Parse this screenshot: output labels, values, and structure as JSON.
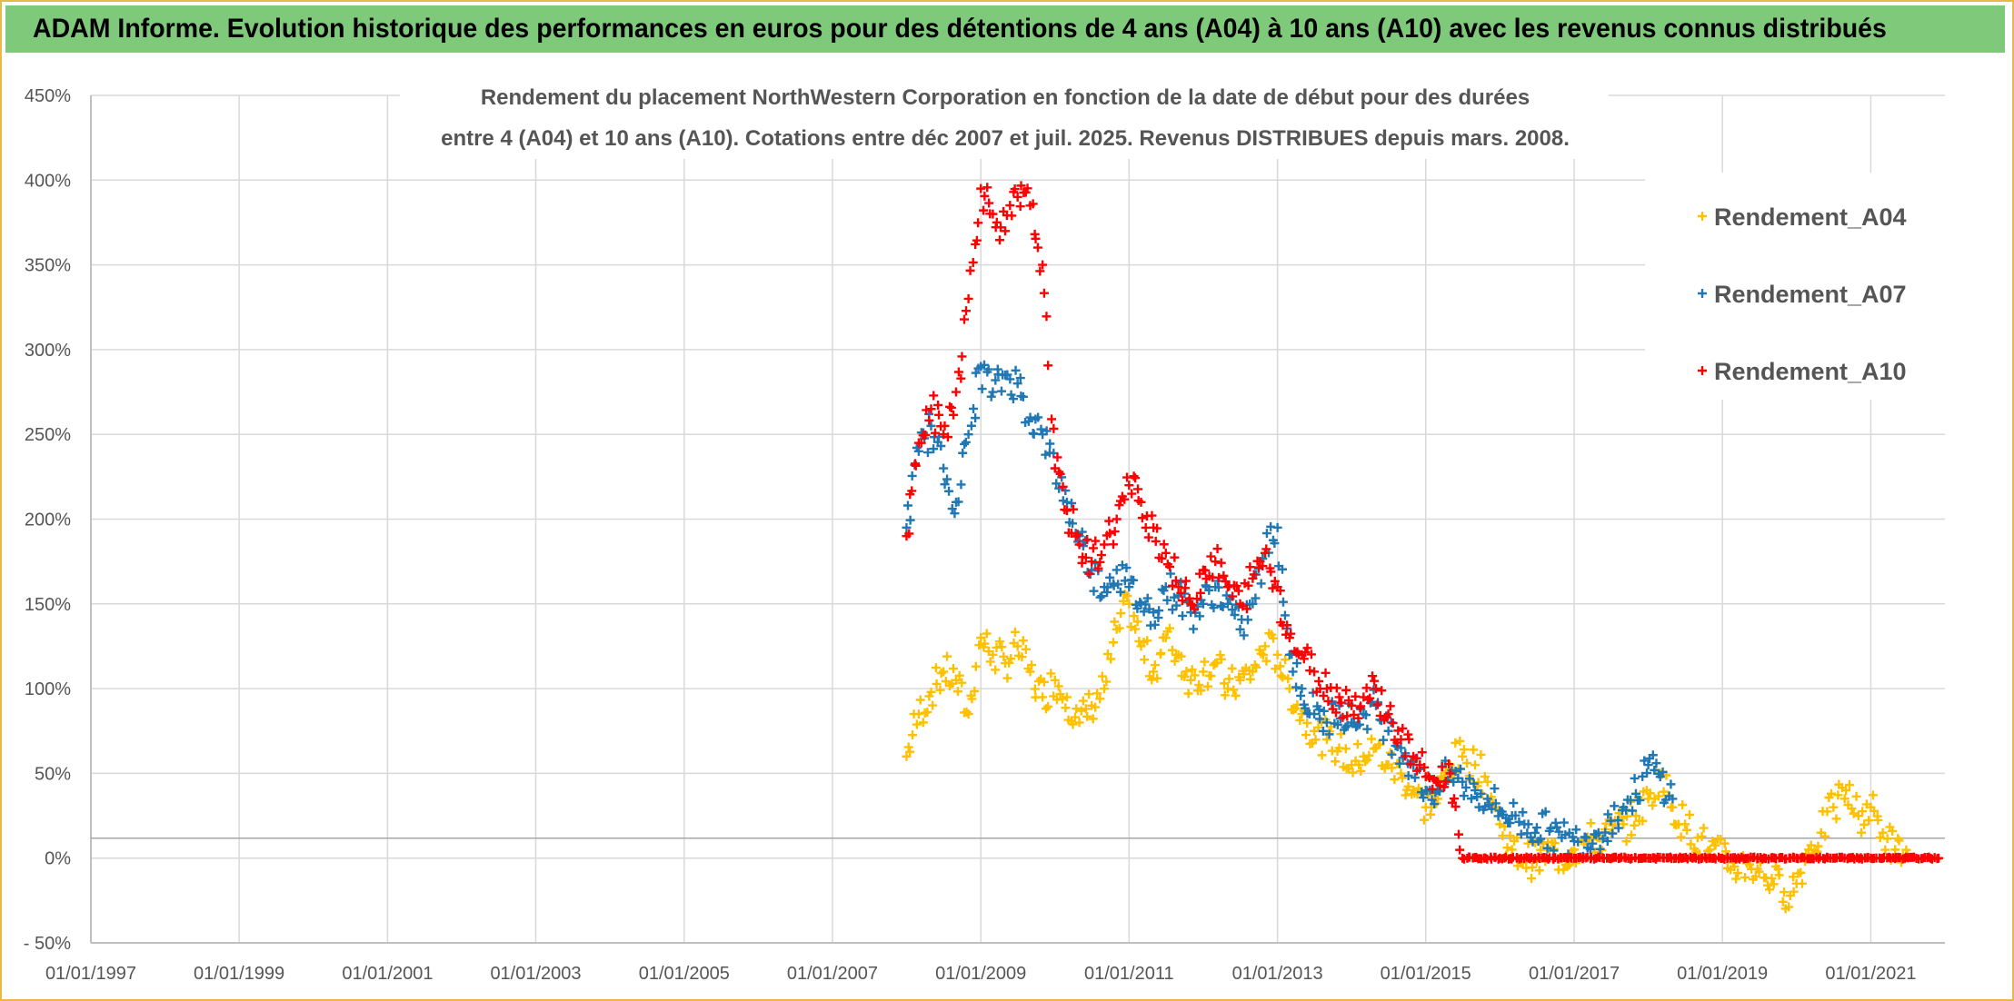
{
  "header": {
    "title": "ADAM Informe. Evolution historique des performances en euros pour des détentions de 4 ans (A04) à 10 ans (A10) avec les revenus connus distribués"
  },
  "colors": {
    "header_bg": "#7ec97a",
    "a04": "#ffc000",
    "a07": "#1f77b4",
    "a10": "#ff0000",
    "grid": "#d9d9d9"
  },
  "chart_data": {
    "type": "scatter",
    "title_lines": [
      "Rendement du placement NorthWestern Corporation en fonction de la date de début pour des durées",
      "entre 4 (A04) et 10 ans (A10). Cotations entre déc 2007 et juil. 2025. Revenus DISTRIBUES depuis mars. 2008."
    ],
    "xlabel": "",
    "ylabel": "",
    "x_ticks": [
      "01/01/1997",
      "01/01/1999",
      "01/01/2001",
      "01/01/2003",
      "01/01/2005",
      "01/01/2007",
      "01/01/2009",
      "01/01/2011",
      "01/01/2013",
      "01/01/2015",
      "01/01/2017",
      "01/01/2019",
      "01/01/2021"
    ],
    "y_ticks": [
      "450%",
      "400%",
      "350%",
      "300%",
      "250%",
      "200%",
      "150%",
      "100%",
      "50%",
      "0%",
      "- 50%"
    ],
    "xlim": [
      "1997-01-01",
      "2022-01-01"
    ],
    "ylim": [
      -50,
      450
    ],
    "grid": true,
    "legend_position": "top-right",
    "series": [
      {
        "name": "Rendement_A04",
        "color": "#ffc000",
        "points": [
          [
            "2008-01-01",
            60
          ],
          [
            "2008-03-01",
            85
          ],
          [
            "2008-05-01",
            98
          ],
          [
            "2008-07-01",
            110
          ],
          [
            "2008-09-01",
            105
          ],
          [
            "2008-11-01",
            85
          ],
          [
            "2009-01-01",
            130
          ],
          [
            "2009-03-01",
            120
          ],
          [
            "2009-05-01",
            115
          ],
          [
            "2009-07-01",
            125
          ],
          [
            "2009-09-01",
            110
          ],
          [
            "2009-11-01",
            95
          ],
          [
            "2010-01-01",
            105
          ],
          [
            "2010-03-01",
            95
          ],
          [
            "2010-05-01",
            80
          ],
          [
            "2010-07-01",
            90
          ],
          [
            "2010-09-01",
            100
          ],
          [
            "2010-11-01",
            135
          ],
          [
            "2011-01-01",
            150
          ],
          [
            "2011-03-01",
            125
          ],
          [
            "2011-05-01",
            110
          ],
          [
            "2011-07-01",
            130
          ],
          [
            "2011-09-01",
            120
          ],
          [
            "2011-11-01",
            105
          ],
          [
            "2012-01-01",
            110
          ],
          [
            "2012-03-01",
            115
          ],
          [
            "2012-05-01",
            100
          ],
          [
            "2012-07-01",
            105
          ],
          [
            "2012-09-01",
            110
          ],
          [
            "2012-11-01",
            125
          ],
          [
            "2013-01-01",
            120
          ],
          [
            "2013-03-01",
            100
          ],
          [
            "2013-05-01",
            85
          ],
          [
            "2013-07-01",
            75
          ],
          [
            "2013-09-01",
            70
          ],
          [
            "2013-11-01",
            65
          ],
          [
            "2014-01-01",
            55
          ],
          [
            "2014-03-01",
            60
          ],
          [
            "2014-05-01",
            65
          ],
          [
            "2014-07-01",
            55
          ],
          [
            "2014-09-01",
            50
          ],
          [
            "2014-11-01",
            40
          ],
          [
            "2015-01-01",
            30
          ],
          [
            "2015-03-01",
            35
          ],
          [
            "2015-05-01",
            55
          ],
          [
            "2015-07-01",
            60
          ],
          [
            "2015-09-01",
            55
          ],
          [
            "2015-11-01",
            45
          ],
          [
            "2016-01-01",
            20
          ],
          [
            "2016-03-01",
            5
          ],
          [
            "2016-05-01",
            0
          ],
          [
            "2016-07-01",
            -2
          ],
          [
            "2016-09-01",
            5
          ],
          [
            "2016-11-01",
            0
          ],
          [
            "2017-01-01",
            5
          ],
          [
            "2017-03-01",
            10
          ],
          [
            "2017-05-01",
            12
          ],
          [
            "2017-07-01",
            15
          ],
          [
            "2017-09-01",
            20
          ],
          [
            "2017-11-01",
            25
          ],
          [
            "2018-01-01",
            35
          ],
          [
            "2018-03-01",
            50
          ],
          [
            "2018-05-01",
            30
          ],
          [
            "2018-07-01",
            20
          ],
          [
            "2018-09-01",
            12
          ],
          [
            "2018-11-01",
            5
          ],
          [
            "2019-01-01",
            0
          ],
          [
            "2019-03-01",
            -5
          ],
          [
            "2019-05-01",
            -3
          ],
          [
            "2019-07-01",
            -8
          ],
          [
            "2019-09-01",
            -12
          ],
          [
            "2019-11-01",
            -20
          ],
          [
            "2020-01-01",
            -15
          ],
          [
            "2020-03-01",
            5
          ],
          [
            "2020-05-01",
            15
          ],
          [
            "2020-07-01",
            30
          ],
          [
            "2020-09-01",
            40
          ],
          [
            "2020-11-01",
            25
          ],
          [
            "2021-01-01",
            30
          ],
          [
            "2021-03-01",
            15
          ],
          [
            "2021-05-01",
            5
          ],
          [
            "2021-07-01",
            2
          ]
        ]
      },
      {
        "name": "Rendement_A07",
        "color": "#1f77b4",
        "points": [
          [
            "2008-01-01",
            195
          ],
          [
            "2008-03-01",
            240
          ],
          [
            "2008-05-01",
            255
          ],
          [
            "2008-07-01",
            230
          ],
          [
            "2008-09-01",
            210
          ],
          [
            "2008-11-01",
            250
          ],
          [
            "2009-01-01",
            290
          ],
          [
            "2009-03-01",
            275
          ],
          [
            "2009-05-01",
            285
          ],
          [
            "2009-07-01",
            280
          ],
          [
            "2009-09-01",
            260
          ],
          [
            "2009-11-01",
            250
          ],
          [
            "2010-01-01",
            230
          ],
          [
            "2010-03-01",
            210
          ],
          [
            "2010-05-01",
            190
          ],
          [
            "2010-07-01",
            170
          ],
          [
            "2010-09-01",
            160
          ],
          [
            "2010-11-01",
            170
          ],
          [
            "2011-01-01",
            160
          ],
          [
            "2011-03-01",
            150
          ],
          [
            "2011-05-01",
            145
          ],
          [
            "2011-07-01",
            160
          ],
          [
            "2011-09-01",
            155
          ],
          [
            "2011-11-01",
            145
          ],
          [
            "2012-01-01",
            150
          ],
          [
            "2012-03-01",
            160
          ],
          [
            "2012-05-01",
            150
          ],
          [
            "2012-07-01",
            135
          ],
          [
            "2012-09-01",
            150
          ],
          [
            "2012-11-01",
            180
          ],
          [
            "2013-01-01",
            195
          ],
          [
            "2013-03-01",
            120
          ],
          [
            "2013-05-01",
            100
          ],
          [
            "2013-07-01",
            85
          ],
          [
            "2013-09-01",
            80
          ],
          [
            "2013-11-01",
            90
          ],
          [
            "2014-01-01",
            80
          ],
          [
            "2014-03-01",
            85
          ],
          [
            "2014-05-01",
            90
          ],
          [
            "2014-07-01",
            75
          ],
          [
            "2014-09-01",
            65
          ],
          [
            "2014-11-01",
            55
          ],
          [
            "2015-01-01",
            40
          ],
          [
            "2015-03-01",
            40
          ],
          [
            "2015-05-01",
            50
          ],
          [
            "2015-07-01",
            45
          ],
          [
            "2015-09-01",
            40
          ],
          [
            "2015-11-01",
            35
          ],
          [
            "2016-01-01",
            28
          ],
          [
            "2016-03-01",
            25
          ],
          [
            "2016-05-01",
            20
          ],
          [
            "2016-07-01",
            18
          ],
          [
            "2016-09-01",
            16
          ],
          [
            "2016-11-01",
            12
          ],
          [
            "2017-01-01",
            10
          ],
          [
            "2017-03-01",
            12
          ],
          [
            "2017-05-01",
            15
          ],
          [
            "2017-07-01",
            22
          ],
          [
            "2017-09-01",
            30
          ],
          [
            "2017-11-01",
            38
          ],
          [
            "2018-01-01",
            55
          ],
          [
            "2018-03-01",
            48
          ],
          [
            "2018-05-01",
            35
          ]
        ]
      },
      {
        "name": "Rendement_A10",
        "color": "#ff0000",
        "points": [
          [
            "2008-01-01",
            190
          ],
          [
            "2008-03-01",
            245
          ],
          [
            "2008-05-01",
            265
          ],
          [
            "2008-07-01",
            250
          ],
          [
            "2008-09-01",
            275
          ],
          [
            "2008-11-01",
            330
          ],
          [
            "2009-01-01",
            395
          ],
          [
            "2009-03-01",
            380
          ],
          [
            "2009-05-01",
            370
          ],
          [
            "2009-07-01",
            390
          ],
          [
            "2009-09-01",
            385
          ],
          [
            "2009-11-01",
            350
          ],
          [
            "2010-01-01",
            230
          ],
          [
            "2010-03-01",
            205
          ],
          [
            "2010-05-01",
            185
          ],
          [
            "2010-07-01",
            175
          ],
          [
            "2010-09-01",
            185
          ],
          [
            "2010-11-01",
            200
          ],
          [
            "2011-01-01",
            220
          ],
          [
            "2011-03-01",
            210
          ],
          [
            "2011-05-01",
            195
          ],
          [
            "2011-07-01",
            180
          ],
          [
            "2011-09-01",
            160
          ],
          [
            "2011-11-01",
            150
          ],
          [
            "2012-01-01",
            170
          ],
          [
            "2012-03-01",
            175
          ],
          [
            "2012-05-01",
            160
          ],
          [
            "2012-07-01",
            150
          ],
          [
            "2012-09-01",
            165
          ],
          [
            "2012-11-01",
            180
          ],
          [
            "2013-01-01",
            160
          ],
          [
            "2013-03-01",
            130
          ],
          [
            "2013-05-01",
            120
          ],
          [
            "2013-07-01",
            110
          ],
          [
            "2013-09-01",
            100
          ],
          [
            "2013-11-01",
            95
          ],
          [
            "2014-01-01",
            90
          ],
          [
            "2014-03-01",
            95
          ],
          [
            "2014-05-01",
            100
          ],
          [
            "2014-07-01",
            85
          ],
          [
            "2014-09-01",
            70
          ],
          [
            "2014-11-01",
            60
          ],
          [
            "2015-01-01",
            48
          ],
          [
            "2015-03-01",
            45
          ],
          [
            "2015-05-01",
            50
          ],
          [
            "2015-07-01",
            0
          ],
          [
            "2016-01-01",
            0
          ],
          [
            "2017-01-01",
            0
          ],
          [
            "2018-01-01",
            0
          ],
          [
            "2019-01-01",
            0
          ],
          [
            "2020-01-01",
            0
          ],
          [
            "2021-01-01",
            0
          ],
          [
            "2021-12-01",
            0
          ]
        ]
      }
    ]
  }
}
